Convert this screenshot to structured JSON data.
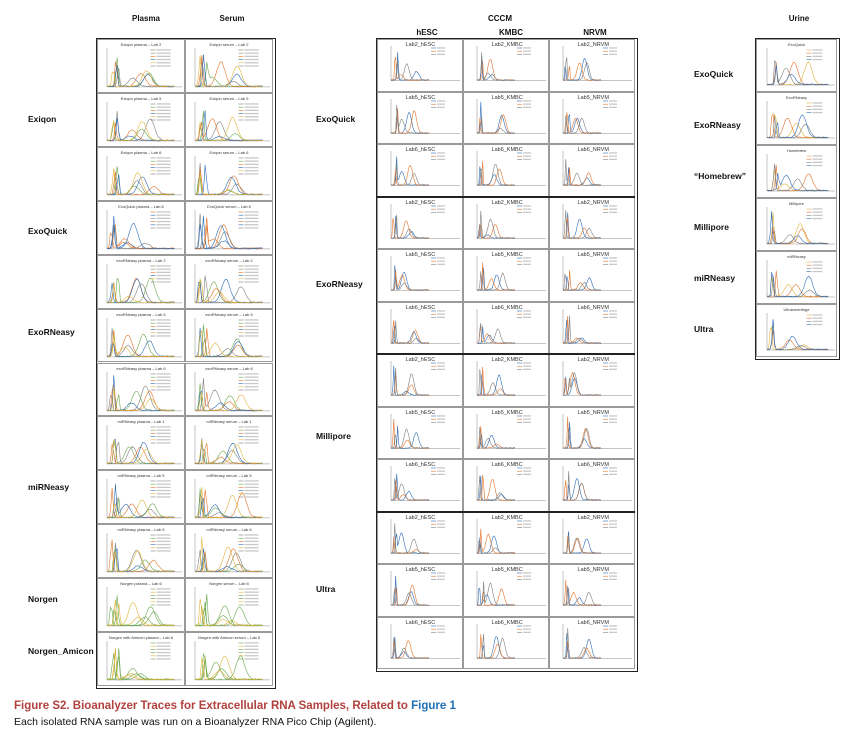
{
  "headers": {
    "plasma": "Plasma",
    "serum": "Serum",
    "cccm": "CCCM",
    "hesc": "hESC",
    "kmbc": "KMBC",
    "nrvm": "NRVM",
    "urine": "Urine"
  },
  "left_rows": {
    "exiqon": "Exiqon",
    "exoquick": "ExoQuick",
    "exorneasy": "ExoRNeasy",
    "mirneasy": "miRNeasy",
    "norgen": "Norgen",
    "norgen_amicon": "Norgen_Amicon"
  },
  "mid_rows": {
    "exoquick": "ExoQuick",
    "exorneasy": "ExoRNeasy",
    "millipore": "Millipore",
    "ultra": "Ultra"
  },
  "right_rows": {
    "exoquick": "ExoQuick",
    "exorneasy": "ExoRNeasy",
    "homebrew": "“Homebrew”",
    "millipore": "Millipore",
    "mirneasy": "miRNeasy",
    "ultra": "Ultra"
  },
  "left_panel_titles": [
    [
      "Exiqon plasma – Lab 2",
      "Exiqon serum – Lab 2"
    ],
    [
      "Exiqon plasma – Lab 5",
      "Exiqon serum – Lab 5"
    ],
    [
      "Exiqon plasma – Lab 6",
      "Exiqon serum – Lab 6"
    ],
    [
      "ExoQuick plasma – Lab 6",
      "ExoQuick serum – Lab 6"
    ],
    [
      "exoRNeasy plasma – Lab 2",
      "exoRNeasy serum – Lab 2"
    ],
    [
      "exoRNeasy plasma – Lab 5",
      "exoRNeasy serum – Lab 5"
    ],
    [
      "exoRNeasy plasma – Lab 6",
      "exoRNeasy serum – Lab 6"
    ],
    [
      "miRNeasy plasma – Lab 1",
      "miRNeasy serum – Lab 1"
    ],
    [
      "miRNeasy plasma – Lab 5",
      "miRNeasy serum – Lab 5"
    ],
    [
      "miRNeasy plasma – Lab 6",
      "miRNeasy serum – Lab 6"
    ],
    [
      "Norgen plasma – Lab 6",
      "Norgen serum – Lab 6"
    ],
    [
      "Norgen with Amicon plasma – Lab 6",
      "Norgen with Amicon serum – Lab 6"
    ]
  ],
  "mid_panel_titles": [
    [
      "Lab2_hESC",
      "Lab2_KMBC",
      "Lab2_NRVM"
    ],
    [
      "Lab5_hESC",
      "Lab5_KMBC",
      "Lab5_NRVM"
    ],
    [
      "Lab6_hESC",
      "Lab6_KMBC",
      "Lab6_NRVM"
    ],
    [
      "Lab2_hESC",
      "Lab2_KMBC",
      "Lab2_NRVM"
    ],
    [
      "Lab5_hESC",
      "Lab5_KMBC",
      "Lab5_NRVM"
    ],
    [
      "Lab6_hESC",
      "Lab6_KMBC",
      "Lab6_NRVM"
    ],
    [
      "Lab2_hESC",
      "Lab2_KMBC",
      "Lab2_NRVM"
    ],
    [
      "Lab5_hESC",
      "Lab5_KMBC",
      "Lab5_NRVM"
    ],
    [
      "Lab6_hESC",
      "Lab6_KMBC",
      "Lab6_NRVM"
    ],
    [
      "Lab2_hESC",
      "Lab2_KMBC",
      "Lab2_NRVM"
    ],
    [
      "Lab5_hESC",
      "Lab5_KMBC",
      "Lab5_NRVM"
    ],
    [
      "Lab6_hESC",
      "Lab6_KMBC",
      "Lab6_NRVM"
    ]
  ],
  "right_panel_titles": [
    "ExoQuick",
    "ExoRNeasy",
    "Homebrew",
    "Millipore",
    "miRNeasy",
    "Ultracentrifuge"
  ],
  "caption": {
    "title_prefix": "Figure S2.  Bioanalyzer Traces for Extracellular RNA Samples, Related to ",
    "title_link": "Figure 1",
    "body": "Each isolated RNA sample was run on a Bioanalyzer RNA Pico Chip (Agilent)."
  },
  "colors": {
    "blue": "#2f6db5",
    "orange": "#e3742a",
    "gray": "#7f7f7f",
    "green": "#6aa84f",
    "yellow": "#e0b43a",
    "caption_red": "#b0413e",
    "link_blue": "#1f6fb5"
  }
}
